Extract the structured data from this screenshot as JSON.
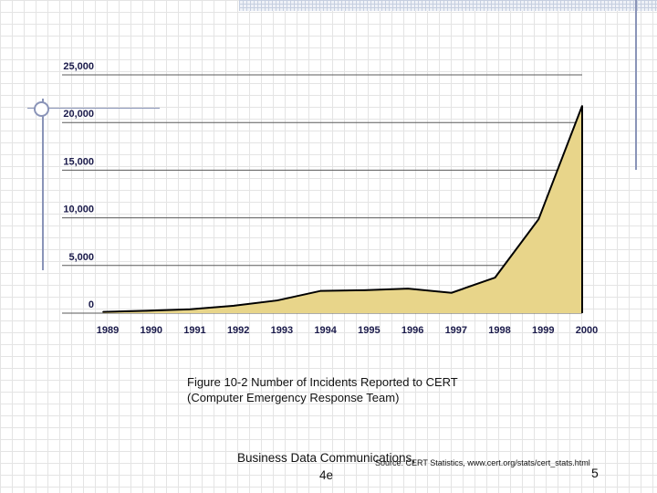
{
  "chart_data": {
    "type": "area",
    "title": "",
    "xlabel": "",
    "ylabel": "",
    "categories": [
      "1989",
      "1990",
      "1991",
      "1992",
      "1993",
      "1994",
      "1995",
      "1996",
      "1997",
      "1998",
      "1999",
      "2000"
    ],
    "values": [
      132,
      252,
      406,
      773,
      1334,
      2340,
      2412,
      2573,
      2134,
      3734,
      9859,
      21756
    ],
    "ylim": [
      0,
      25000
    ],
    "y_ticks": [
      "0",
      "5,000",
      "10,000",
      "15,000",
      "20,000",
      "25,000"
    ],
    "y_tick_values": [
      0,
      5000,
      10000,
      15000,
      20000,
      25000
    ],
    "grid": "horizontal",
    "fill_color": "#e8d58a",
    "line_color": "#000000"
  },
  "caption": {
    "line1": "Figure 10-2 Number of Incidents Reported to CERT",
    "line2": "(Computer Emergency Response Team)"
  },
  "footer": {
    "line1": "Business Data Communications,",
    "line2": "4e",
    "source": "Source: CERT Statistics, www.cert.org/stats/cert_stats.html",
    "page": "5"
  }
}
